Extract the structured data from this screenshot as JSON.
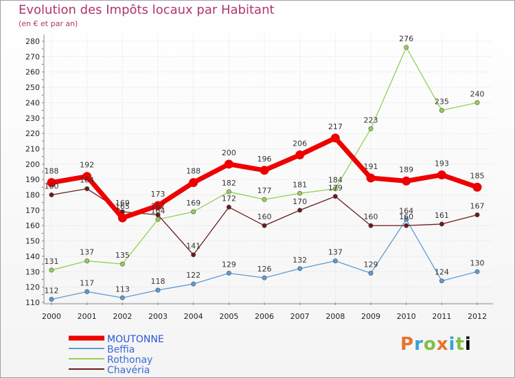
{
  "header": {
    "title": "Evolution des Impôts locaux par Habitant",
    "subtitle": "(en € et par an)"
  },
  "brand": {
    "text": "Proxiti"
  },
  "colors": {
    "moutonne": "#ee0000",
    "beffia": "#5b9bd5",
    "rothonay": "#92d050",
    "chaveria": "#6b1a1a",
    "title": "#b0346a"
  },
  "chart_data": {
    "type": "line",
    "title": "Evolution des Impôts locaux par Habitant",
    "subtitle": "(en € et par an)",
    "xlabel": "",
    "ylabel": "",
    "categories": [
      "2000",
      "2001",
      "2002",
      "2003",
      "2004",
      "2005",
      "2006",
      "2007",
      "2008",
      "2009",
      "2010",
      "2011",
      "2012"
    ],
    "ylim": [
      110,
      280
    ],
    "yticks": [
      110,
      120,
      130,
      140,
      150,
      160,
      170,
      180,
      190,
      200,
      210,
      220,
      230,
      240,
      250,
      260,
      270,
      280
    ],
    "grid": true,
    "legend_position": "bottom-left",
    "series": [
      {
        "name": "MOUTONNE",
        "key": "moutonne",
        "values": [
          188,
          192,
          165,
          173,
          188,
          200,
          196,
          206,
          217,
          191,
          189,
          193,
          185
        ]
      },
      {
        "name": "Beffia",
        "key": "beffia",
        "values": [
          112,
          117,
          113,
          118,
          122,
          129,
          126,
          132,
          137,
          129,
          164,
          124,
          130
        ]
      },
      {
        "name": "Rothonay",
        "key": "rothonay",
        "values": [
          131,
          137,
          135,
          164,
          169,
          182,
          177,
          181,
          184,
          223,
          276,
          235,
          240
        ]
      },
      {
        "name": "Chavéria",
        "key": "chaveria",
        "values": [
          180,
          184,
          169,
          167,
          141,
          172,
          160,
          170,
          179,
          160,
          160,
          161,
          167
        ]
      }
    ]
  }
}
